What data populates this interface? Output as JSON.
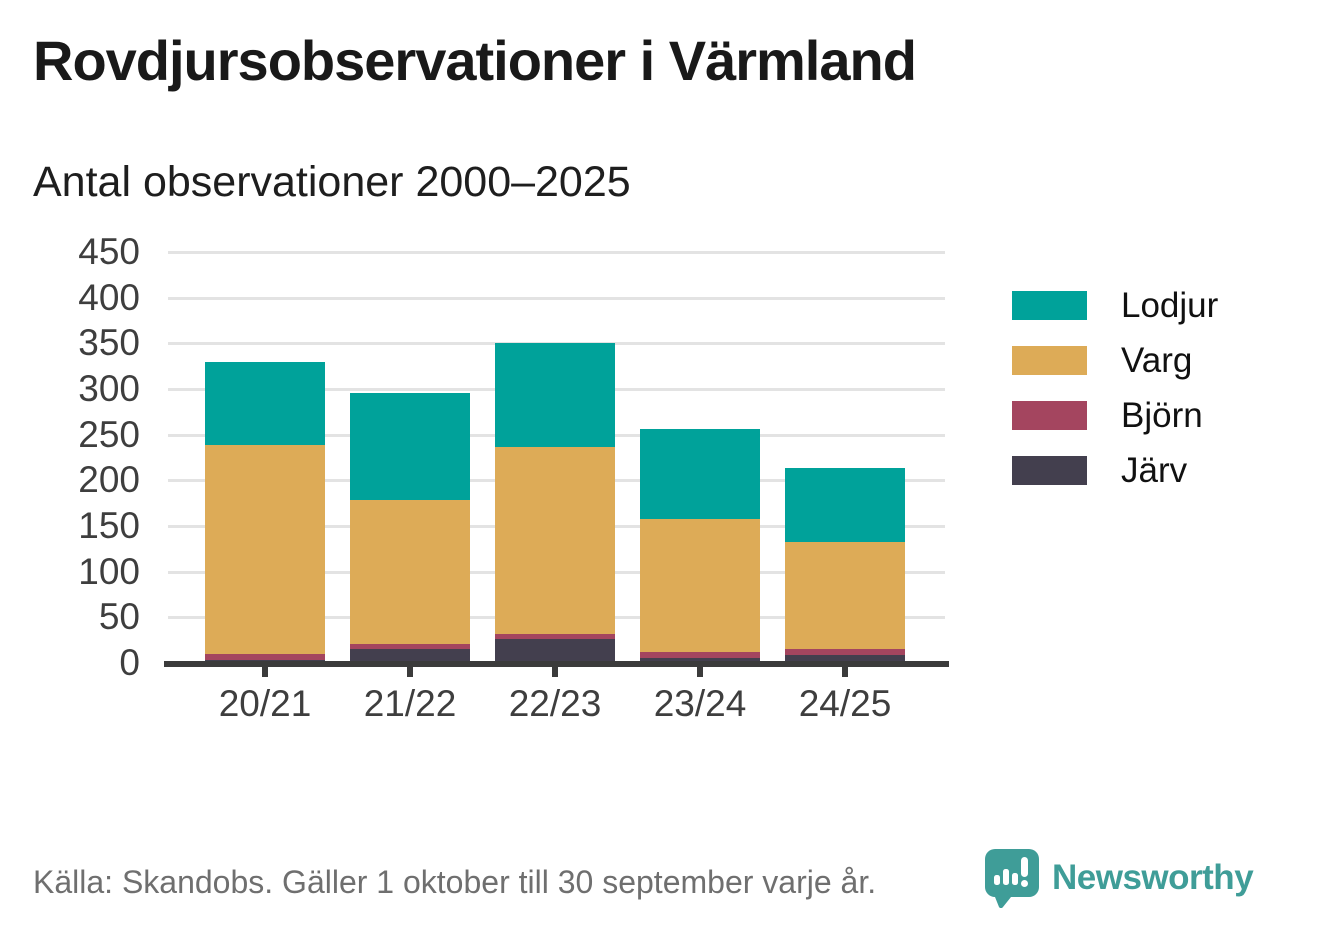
{
  "title": "Rovdjursobservationer i Värmland",
  "subtitle": "Antal observationer 2000–2025",
  "footer": {
    "source": "Källa: Skandobs. Gäller 1 oktober till 30 september varje år.",
    "brand": "Newsworthy",
    "logo_icon": "speech-bubble-bar-chart-exclamation-icon"
  },
  "colors": {
    "lodjur": "#00A29A",
    "varg": "#DDAB57",
    "bjorn": "#A4455F",
    "jarv": "#433F4E",
    "gridline": "#E3E3E3",
    "axis": "#3B3B3B",
    "tick_label": "#3E3E3E",
    "footer_text": "#6F6F6F",
    "brand_teal": "#3F9D98"
  },
  "chart_data": {
    "type": "bar",
    "stacked": true,
    "title": "Rovdjursobservationer i Värmland",
    "subtitle": "Antal observationer 2000–2025",
    "xlabel": "",
    "ylabel": "",
    "categories": [
      "20/21",
      "21/22",
      "22/23",
      "23/24",
      "24/25"
    ],
    "series": [
      {
        "name": "Järv",
        "color_key": "jarv",
        "values": [
          3,
          15,
          26,
          6,
          9
        ]
      },
      {
        "name": "Björn",
        "color_key": "bjorn",
        "values": [
          7,
          6,
          6,
          6,
          6
        ]
      },
      {
        "name": "Varg",
        "color_key": "varg",
        "values": [
          229,
          157,
          204,
          146,
          118
        ]
      },
      {
        "name": "Lodjur",
        "color_key": "lodjur",
        "values": [
          91,
          118,
          114,
          98,
          81
        ]
      }
    ],
    "totals": [
      330,
      296,
      350,
      256,
      214
    ],
    "legend_order": [
      "Lodjur",
      "Varg",
      "Björn",
      "Järv"
    ],
    "legend_position": "right",
    "ylim": [
      0,
      450
    ],
    "ytick_step": 50,
    "grid": true
  }
}
